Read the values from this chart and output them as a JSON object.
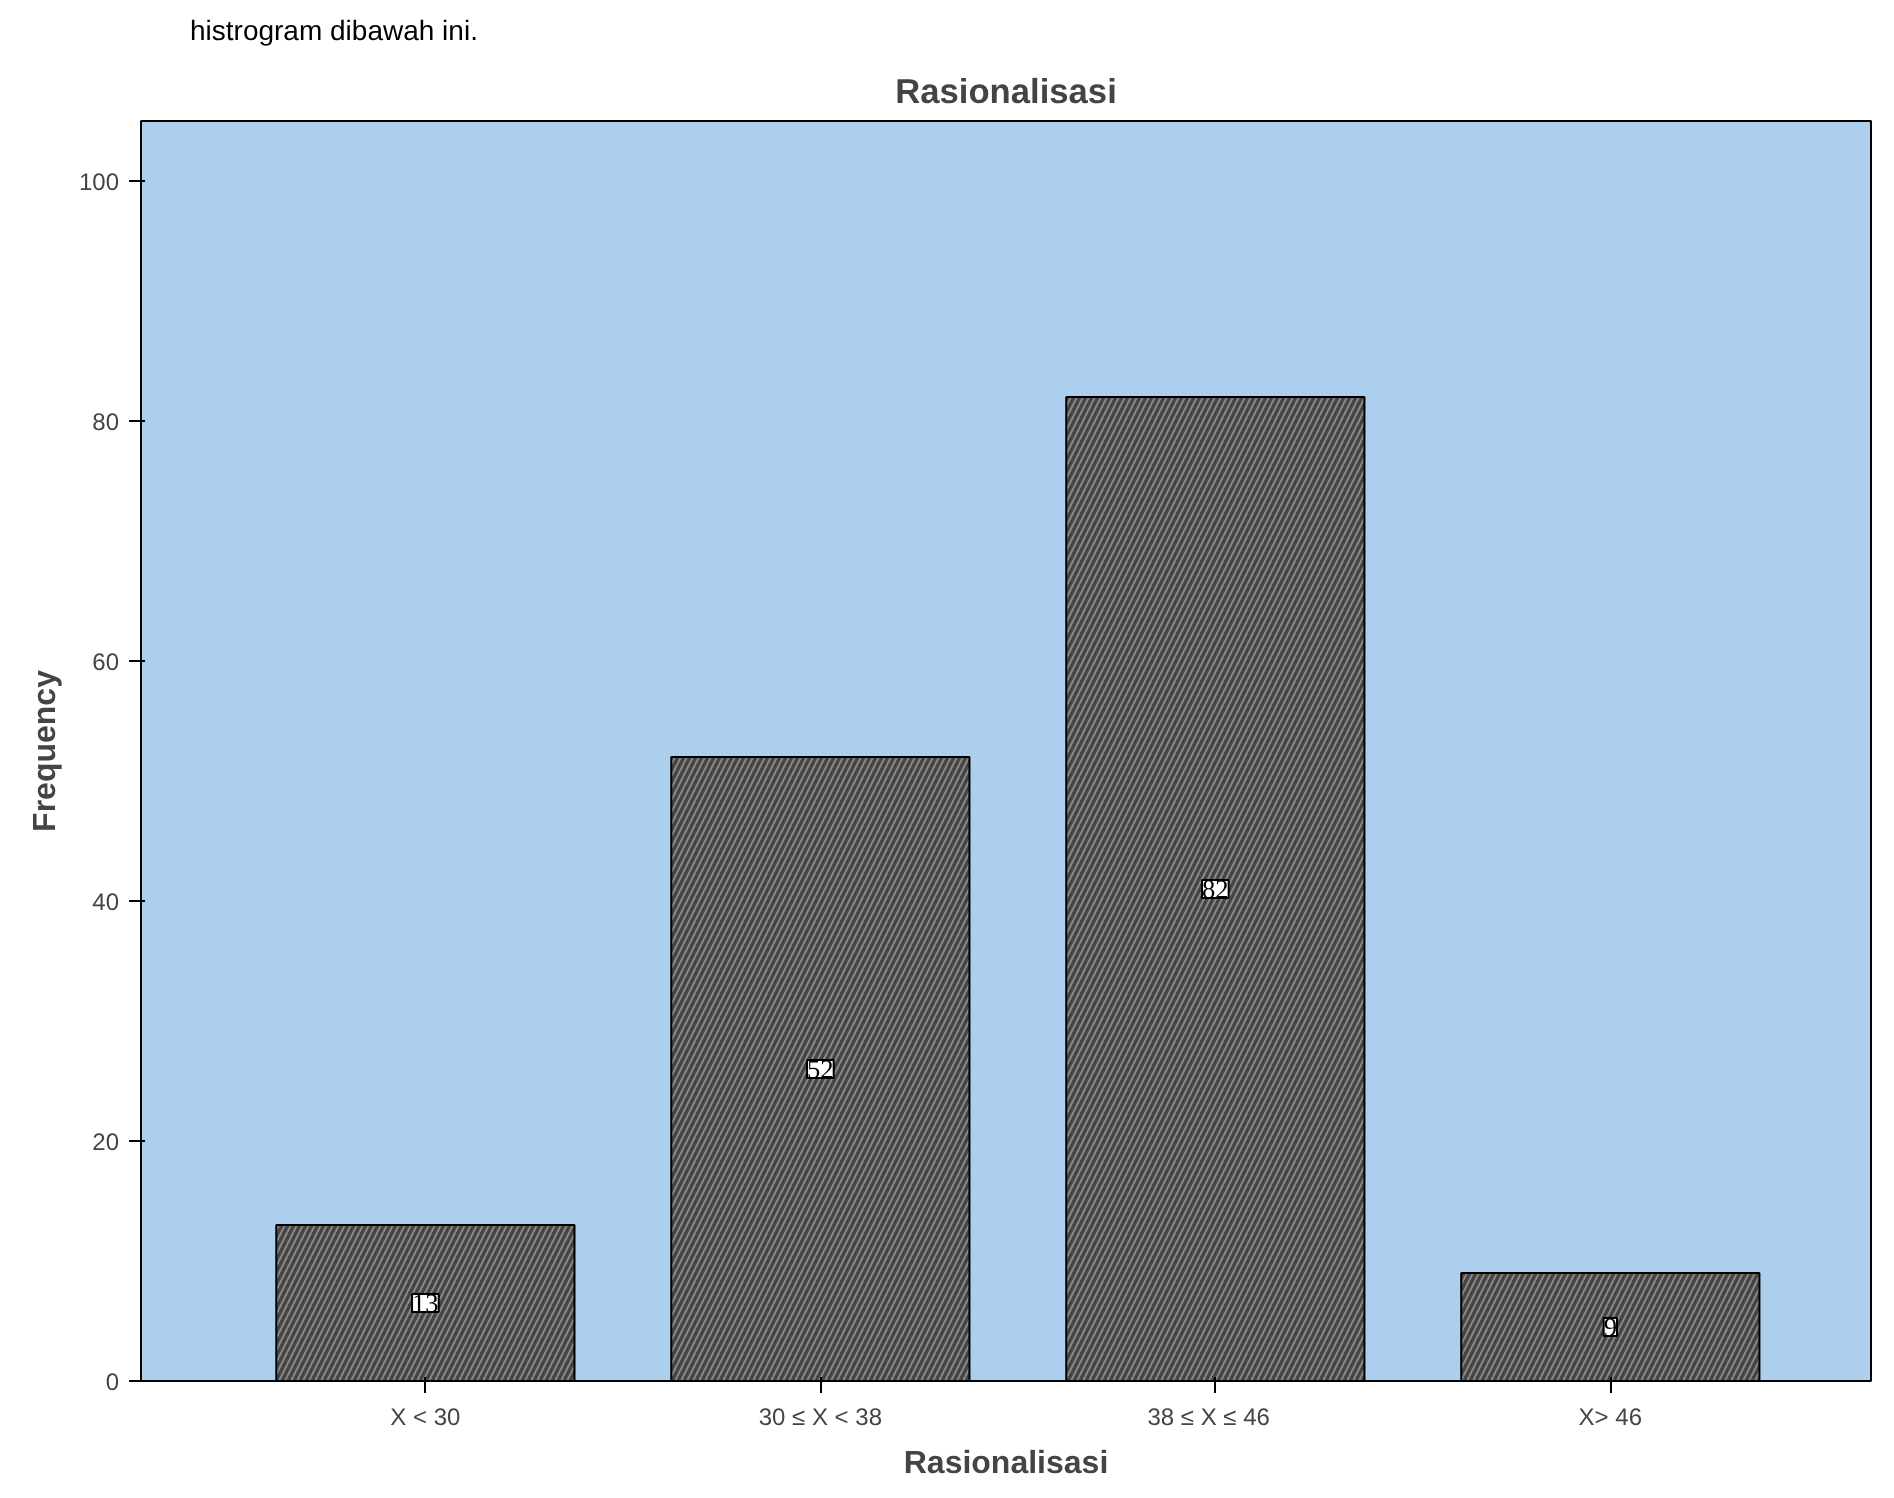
{
  "chart_data": {
    "type": "bar",
    "title": "Rasionalisasi",
    "xlabel": "Rasionalisasi",
    "ylabel": "Frequency",
    "annotations": [
      "histrogram dibawah ini."
    ],
    "categories": [
      "X < 30",
      "30 ≤ X < 38",
      "38 ≤  X ≤  46",
      "X> 46"
    ],
    "values": [
      13,
      52,
      82,
      9
    ],
    "color": "#444444",
    "ylim": [
      0,
      105
    ],
    "yticks": [
      0,
      20,
      40,
      60,
      80,
      100
    ],
    "data_labels": true,
    "grid": false
  }
}
